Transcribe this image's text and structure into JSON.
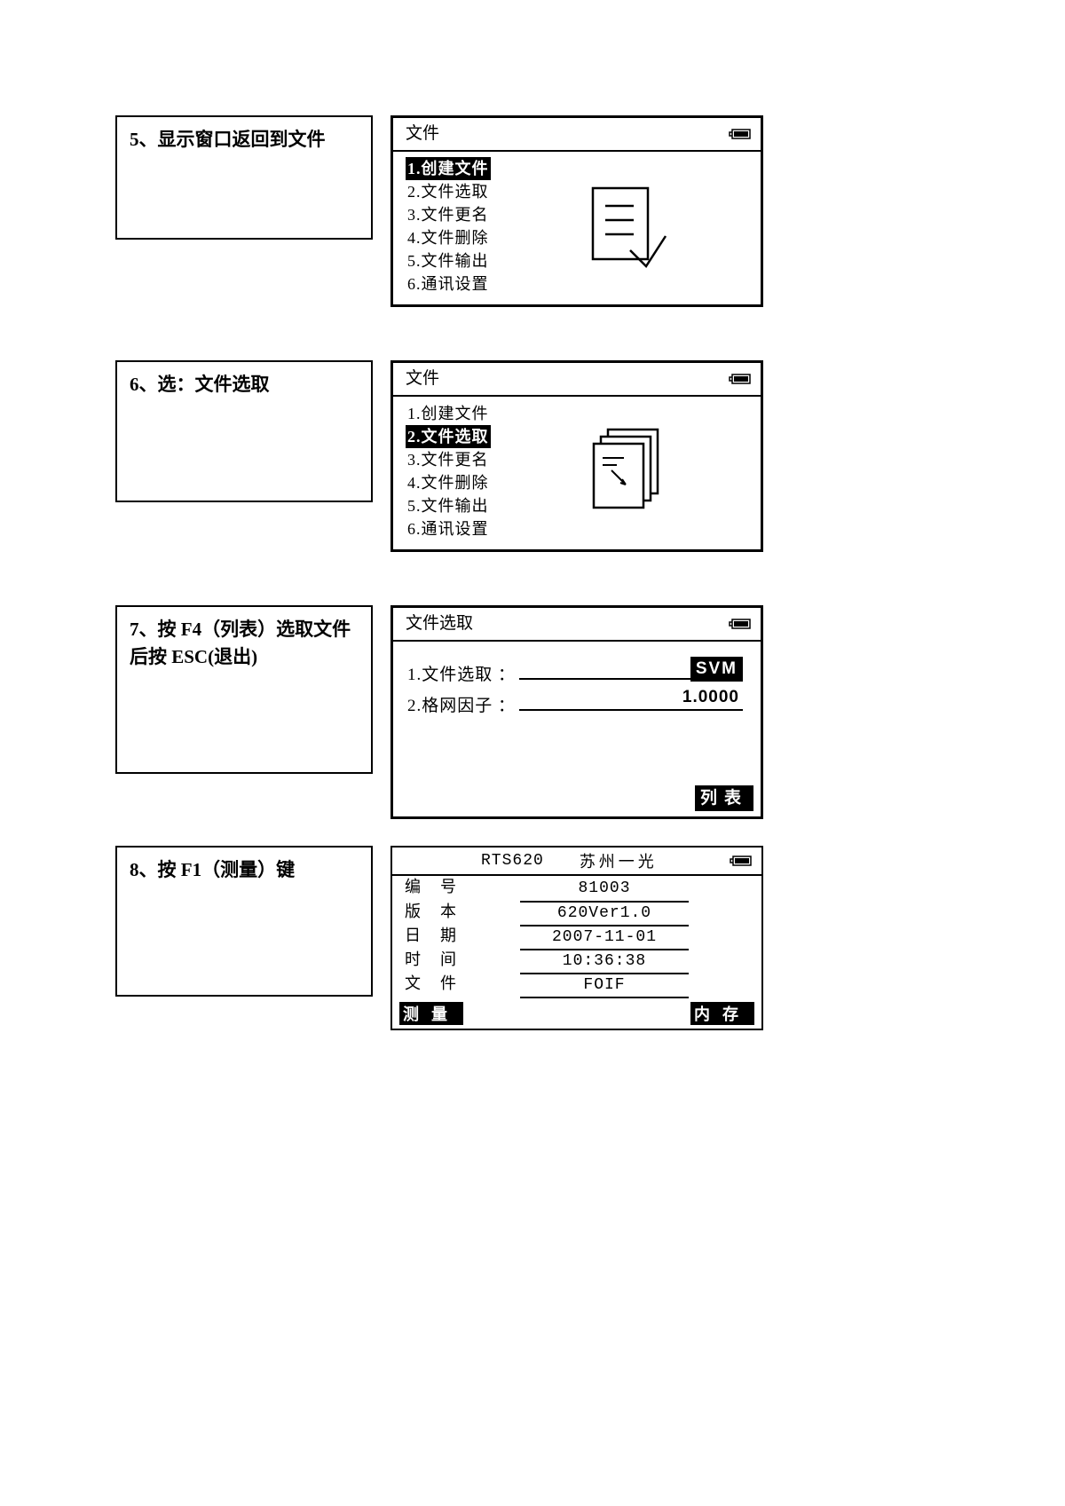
{
  "step5": {
    "instruction": "5、显示窗口返回到文件",
    "screen_title": "文件",
    "menu": [
      "1.创建文件",
      "2.文件选取",
      "3.文件更名",
      "4.文件删除",
      "5.文件输出",
      "6.通讯设置"
    ],
    "selected_index": 0
  },
  "step6": {
    "instruction": "6、选：文件选取",
    "screen_title": "文件",
    "menu": [
      "1.创建文件",
      "2.文件选取",
      "3.文件更名",
      "4.文件删除",
      "5.文件输出",
      "6.通讯设置"
    ],
    "selected_index": 1
  },
  "step7": {
    "instruction": "7、按 F4（列表）选取文件后按 ESC(退出)",
    "screen_title": "文件选取",
    "row1_label": "1.文件选取 ：",
    "row1_value": "SVM",
    "row2_label": "2.格网因子 ：",
    "row2_value": "1.0000",
    "softkey_f4": "列表"
  },
  "step8": {
    "instruction": "8、按 F1（测量）键",
    "title_left": "RTS620",
    "title_right": "苏州一光",
    "rows": [
      {
        "label": "编号",
        "value": "81003"
      },
      {
        "label": "版本",
        "value": "620Ver1.0"
      },
      {
        "label": "日期",
        "value": "2007-11-01"
      },
      {
        "label": "时间",
        "value": "10:36:38"
      },
      {
        "label": "文件",
        "value": "FOIF"
      }
    ],
    "softkey_f1": "测量",
    "softkey_f4": "内存"
  }
}
